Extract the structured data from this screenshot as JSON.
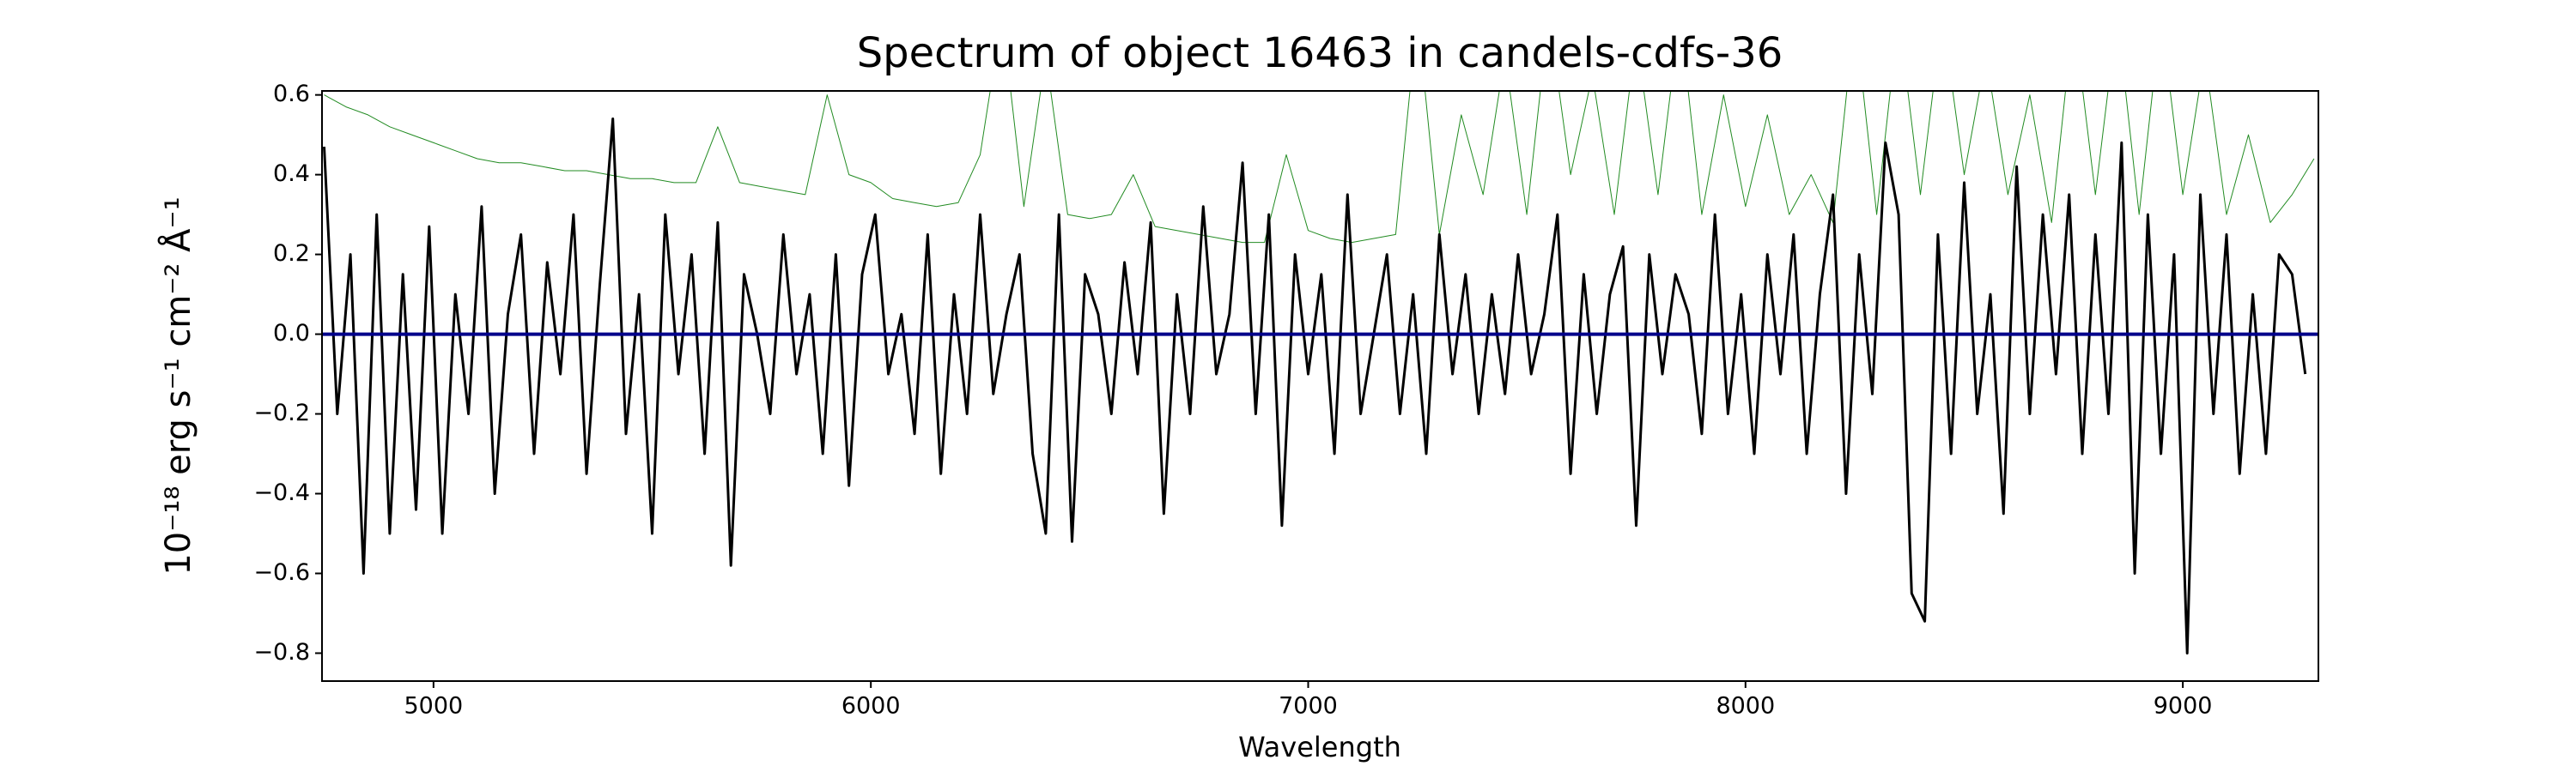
{
  "chart_data": {
    "type": "line",
    "title": "Spectrum of object 16463 in candels-cdfs-36",
    "xlabel": "Wavelength",
    "ylabel": "10⁻¹⁸ erg s⁻¹ cm⁻² Å⁻¹",
    "xlim": [
      4745,
      9310
    ],
    "ylim": [
      -0.87,
      0.61
    ],
    "xticks": [
      5000,
      6000,
      7000,
      8000,
      9000
    ],
    "yticks": [
      {
        "value": -0.8,
        "label": "−0.8"
      },
      {
        "value": -0.6,
        "label": "−0.6"
      },
      {
        "value": -0.4,
        "label": "−0.4"
      },
      {
        "value": -0.2,
        "label": "−0.2"
      },
      {
        "value": 0,
        "label": "0.0"
      },
      0.2,
      0.4,
      0.6
    ],
    "grid": false,
    "series": [
      {
        "color": "#228b22",
        "width": 1,
        "x": [
          4750,
          4800,
          4850,
          4900,
          4950,
          5000,
          5050,
          5100,
          5150,
          5200,
          5250,
          5300,
          5350,
          5400,
          5450,
          5500,
          5550,
          5600,
          5650,
          5700,
          5750,
          5800,
          5850,
          5900,
          5950,
          6000,
          6050,
          6100,
          6150,
          6200,
          6250,
          6300,
          6350,
          6400,
          6450,
          6500,
          6550,
          6600,
          6650,
          6700,
          6750,
          6800,
          6850,
          6900,
          6950,
          7000,
          7050,
          7100,
          7150,
          7200,
          7250,
          7300,
          7350,
          7400,
          7450,
          7500,
          7550,
          7600,
          7650,
          7700,
          7750,
          7800,
          7850,
          7900,
          7950,
          8000,
          8050,
          8100,
          8150,
          8200,
          8250,
          8300,
          8350,
          8400,
          8450,
          8500,
          8550,
          8600,
          8650,
          8700,
          8750,
          8800,
          8850,
          8900,
          8950,
          9000,
          9050,
          9100,
          9150,
          9200,
          9250,
          9300
        ],
        "values": [
          0.6,
          0.57,
          0.55,
          0.52,
          0.5,
          0.48,
          0.46,
          0.44,
          0.43,
          0.43,
          0.42,
          0.41,
          0.41,
          0.4,
          0.39,
          0.39,
          0.38,
          0.38,
          0.52,
          0.38,
          0.37,
          0.36,
          0.35,
          0.6,
          0.4,
          0.38,
          0.34,
          0.33,
          0.32,
          0.33,
          0.45,
          0.8,
          0.32,
          0.7,
          0.3,
          0.29,
          0.3,
          0.4,
          0.27,
          0.26,
          0.25,
          0.24,
          0.23,
          0.23,
          0.45,
          0.26,
          0.24,
          0.23,
          0.24,
          0.25,
          0.8,
          0.25,
          0.55,
          0.35,
          0.7,
          0.3,
          0.8,
          0.4,
          0.65,
          0.3,
          0.75,
          0.35,
          0.8,
          0.3,
          0.6,
          0.32,
          0.55,
          0.3,
          0.4,
          0.28,
          0.8,
          0.3,
          0.8,
          0.35,
          0.8,
          0.4,
          0.7,
          0.35,
          0.6,
          0.28,
          0.8,
          0.35,
          0.8,
          0.3,
          0.8,
          0.35,
          0.7,
          0.3,
          0.5,
          0.28,
          0.35,
          0.44
        ]
      },
      {
        "color": "#000000",
        "width": 3,
        "x": [
          4750,
          4780,
          4810,
          4840,
          4870,
          4900,
          4930,
          4960,
          4990,
          5020,
          5050,
          5080,
          5110,
          5140,
          5170,
          5200,
          5230,
          5260,
          5290,
          5320,
          5350,
          5380,
          5410,
          5440,
          5470,
          5500,
          5530,
          5560,
          5590,
          5620,
          5650,
          5680,
          5710,
          5740,
          5770,
          5800,
          5830,
          5860,
          5890,
          5920,
          5950,
          5980,
          6010,
          6040,
          6070,
          6100,
          6130,
          6160,
          6190,
          6220,
          6250,
          6280,
          6310,
          6340,
          6370,
          6400,
          6430,
          6460,
          6490,
          6520,
          6550,
          6580,
          6610,
          6640,
          6670,
          6700,
          6730,
          6760,
          6790,
          6820,
          6850,
          6880,
          6910,
          6940,
          6970,
          7000,
          7030,
          7060,
          7090,
          7120,
          7150,
          7180,
          7210,
          7240,
          7270,
          7300,
          7330,
          7360,
          7390,
          7420,
          7450,
          7480,
          7510,
          7540,
          7570,
          7600,
          7630,
          7660,
          7690,
          7720,
          7750,
          7780,
          7810,
          7840,
          7870,
          7900,
          7930,
          7960,
          7990,
          8020,
          8050,
          8080,
          8110,
          8140,
          8170,
          8200,
          8230,
          8260,
          8290,
          8320,
          8350,
          8380,
          8410,
          8440,
          8470,
          8500,
          8530,
          8560,
          8590,
          8620,
          8650,
          8680,
          8710,
          8740,
          8770,
          8800,
          8830,
          8860,
          8890,
          8920,
          8950,
          8980,
          9010,
          9040,
          9070,
          9100,
          9130,
          9160,
          9190,
          9220,
          9250,
          9280
        ],
        "values": [
          0.47,
          -0.2,
          0.2,
          -0.6,
          0.3,
          -0.5,
          0.15,
          -0.44,
          0.27,
          -0.5,
          0.1,
          -0.2,
          0.32,
          -0.4,
          0.05,
          0.25,
          -0.3,
          0.18,
          -0.1,
          0.3,
          -0.35,
          0.12,
          0.54,
          -0.25,
          0.1,
          -0.5,
          0.3,
          -0.1,
          0.2,
          -0.3,
          0.28,
          -0.58,
          0.15,
          0.0,
          -0.2,
          0.25,
          -0.1,
          0.1,
          -0.3,
          0.2,
          -0.38,
          0.15,
          0.3,
          -0.1,
          0.05,
          -0.25,
          0.25,
          -0.35,
          0.1,
          -0.2,
          0.3,
          -0.15,
          0.05,
          0.2,
          -0.3,
          -0.5,
          0.3,
          -0.52,
          0.15,
          0.05,
          -0.2,
          0.18,
          -0.1,
          0.28,
          -0.45,
          0.1,
          -0.2,
          0.32,
          -0.1,
          0.05,
          0.43,
          -0.2,
          0.3,
          -0.48,
          0.2,
          -0.1,
          0.15,
          -0.3,
          0.35,
          -0.2,
          0.0,
          0.2,
          -0.2,
          0.1,
          -0.3,
          0.25,
          -0.1,
          0.15,
          -0.2,
          0.1,
          -0.15,
          0.2,
          -0.1,
          0.05,
          0.3,
          -0.35,
          0.15,
          -0.2,
          0.1,
          0.22,
          -0.48,
          0.2,
          -0.1,
          0.15,
          0.05,
          -0.25,
          0.3,
          -0.2,
          0.1,
          -0.3,
          0.2,
          -0.1,
          0.25,
          -0.3,
          0.1,
          0.35,
          -0.4,
          0.2,
          -0.15,
          0.48,
          0.3,
          -0.65,
          -0.72,
          0.25,
          -0.3,
          0.38,
          -0.2,
          0.1,
          -0.45,
          0.42,
          -0.2,
          0.3,
          -0.1,
          0.35,
          -0.3,
          0.25,
          -0.2,
          0.48,
          -0.6,
          0.3,
          -0.3,
          0.2,
          -0.8,
          0.35,
          -0.2,
          0.25,
          -0.35,
          0.1,
          -0.3,
          0.2,
          0.15,
          -0.1
        ]
      },
      {
        "color": "#00008b",
        "width": 4,
        "x": [
          4745,
          9310
        ],
        "values": [
          0,
          0
        ]
      }
    ]
  }
}
